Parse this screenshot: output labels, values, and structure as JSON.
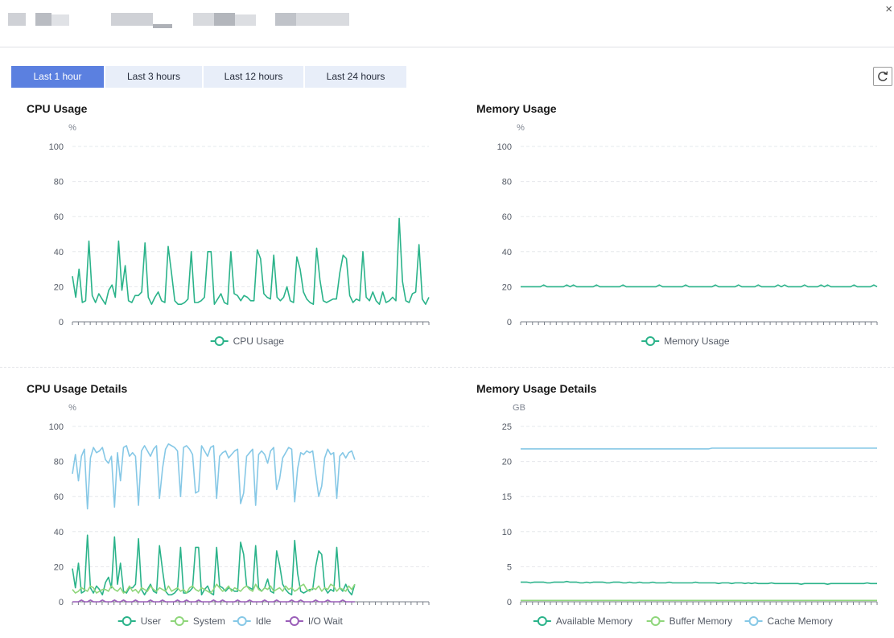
{
  "header": {
    "close_label": "×"
  },
  "tabs": [
    {
      "label": "Last 1 hour",
      "active": true
    },
    {
      "label": "Last 3 hours",
      "active": false
    },
    {
      "label": "Last 12 hours",
      "active": false
    },
    {
      "label": "Last 24 hours",
      "active": false
    }
  ],
  "toolbar": {
    "refresh_icon": "refresh-icon"
  },
  "colors": {
    "accent": "#5b80e0",
    "green": "#2bb38a",
    "lightgreen": "#8fd67b",
    "blue": "#86c8e6",
    "purple": "#9a5eb8"
  },
  "chart_data": [
    {
      "type": "line",
      "title": "CPU Usage",
      "ylabel": "%",
      "ylim": [
        0,
        100
      ],
      "yticks": [
        0,
        20,
        40,
        60,
        80,
        100
      ],
      "legend": [
        "CPU Usage"
      ],
      "series": [
        {
          "name": "CPU Usage",
          "color": "#2bb38a",
          "values": [
            26,
            14,
            30,
            11,
            12,
            46,
            15,
            11,
            16,
            13,
            10,
            18,
            21,
            14,
            46,
            18,
            32,
            12,
            11,
            15,
            15,
            17,
            45,
            14,
            10,
            14,
            17,
            12,
            11,
            43,
            28,
            12,
            10,
            10,
            11,
            13,
            40,
            11,
            11,
            12,
            14,
            40,
            40,
            10,
            13,
            16,
            11,
            10,
            40,
            16,
            15,
            12,
            15,
            14,
            12,
            12,
            41,
            36,
            16,
            14,
            13,
            38,
            14,
            12,
            14,
            20,
            12,
            11,
            37,
            30,
            17,
            13,
            11,
            10,
            42,
            24,
            12,
            11,
            12,
            13,
            13,
            28,
            38,
            36,
            15,
            11,
            13,
            12,
            40,
            14,
            12,
            17,
            12,
            10,
            17,
            11,
            12,
            14,
            12,
            59,
            23,
            12,
            11,
            16,
            17,
            44,
            13,
            10,
            14
          ]
        }
      ]
    },
    {
      "type": "line",
      "title": "Memory Usage",
      "ylabel": "%",
      "ylim": [
        0,
        100
      ],
      "yticks": [
        0,
        20,
        40,
        60,
        80,
        100
      ],
      "legend": [
        "Memory Usage"
      ],
      "series": [
        {
          "name": "Memory Usage",
          "color": "#2bb38a",
          "values": [
            20,
            20,
            20,
            20,
            20,
            20,
            20,
            21,
            20,
            20,
            20,
            20,
            20,
            20,
            21,
            20,
            21,
            20,
            20,
            20,
            20,
            20,
            20,
            21,
            20,
            20,
            20,
            20,
            20,
            20,
            20,
            21,
            20,
            20,
            20,
            20,
            20,
            20,
            20,
            20,
            20,
            20,
            21,
            20,
            20,
            20,
            20,
            20,
            20,
            20,
            21,
            20,
            20,
            20,
            20,
            20,
            20,
            20,
            20,
            21,
            20,
            20,
            20,
            20,
            20,
            20,
            21,
            20,
            20,
            20,
            20,
            20,
            21,
            20,
            20,
            20,
            20,
            20,
            21,
            20,
            21,
            20,
            20,
            20,
            20,
            20,
            21,
            20,
            20,
            20,
            20,
            21,
            20,
            21,
            20,
            20,
            20,
            20,
            20,
            20,
            20,
            21,
            20,
            20,
            20,
            20,
            20,
            21,
            20
          ]
        }
      ]
    },
    {
      "type": "line",
      "title": "CPU Usage Details",
      "ylabel": "%",
      "ylim": [
        0,
        100
      ],
      "yticks": [
        0,
        20,
        40,
        60,
        80,
        100
      ],
      "legend": [
        "User",
        "System",
        "Idle",
        "I/O Wait"
      ],
      "series": [
        {
          "name": "User",
          "color": "#2bb38a",
          "values": [
            19,
            8,
            22,
            5,
            6,
            38,
            8,
            5,
            9,
            7,
            4,
            11,
            14,
            8,
            37,
            10,
            22,
            6,
            5,
            8,
            8,
            10,
            36,
            7,
            4,
            7,
            10,
            6,
            5,
            32,
            18,
            6,
            4,
            4,
            5,
            7,
            31,
            5,
            5,
            6,
            8,
            31,
            31,
            4,
            7,
            9,
            5,
            4,
            31,
            9,
            8,
            6,
            8,
            7,
            6,
            6,
            34,
            27,
            9,
            8,
            7,
            32,
            8,
            6,
            8,
            13,
            6,
            5,
            29,
            21,
            10,
            7,
            5,
            4,
            35,
            16,
            6,
            5,
            6,
            7,
            7,
            20,
            29,
            27,
            8,
            5,
            7,
            6,
            31,
            8,
            6,
            10,
            6,
            4,
            10
          ]
        },
        {
          "name": "System",
          "color": "#8fd67b",
          "values": [
            7,
            5,
            6,
            8,
            7,
            6,
            9,
            8,
            5,
            6,
            7,
            7,
            6,
            9,
            7,
            6,
            8,
            5,
            6,
            9,
            6,
            7,
            5,
            8,
            7,
            6,
            9,
            7,
            6,
            8,
            7,
            6,
            9,
            6,
            7,
            8,
            6,
            7,
            5,
            8,
            9,
            7,
            6,
            8,
            7,
            6,
            5,
            7,
            10,
            8,
            6,
            7,
            9,
            6,
            8,
            7,
            6,
            8,
            9,
            7,
            6,
            10,
            7,
            6,
            8,
            7,
            9,
            6,
            7,
            8,
            6,
            9,
            7,
            8,
            6,
            7,
            9,
            10,
            7,
            6,
            8,
            7,
            9,
            6,
            8,
            7,
            10,
            9,
            6,
            8,
            7,
            6,
            9,
            7,
            10
          ]
        },
        {
          "name": "Idle",
          "color": "#86c8e6",
          "values": [
            73,
            84,
            69,
            83,
            87,
            53,
            82,
            88,
            85,
            86,
            88,
            81,
            79,
            83,
            54,
            85,
            69,
            88,
            89,
            83,
            85,
            83,
            55,
            86,
            89,
            86,
            83,
            87,
            89,
            59,
            76,
            87,
            90,
            89,
            88,
            86,
            60,
            88,
            89,
            87,
            84,
            62,
            63,
            89,
            86,
            83,
            88,
            89,
            59,
            83,
            85,
            86,
            82,
            84,
            86,
            87,
            56,
            62,
            83,
            85,
            87,
            55,
            84,
            86,
            84,
            79,
            86,
            88,
            64,
            70,
            82,
            85,
            88,
            87,
            57,
            76,
            85,
            84,
            86,
            85,
            86,
            73,
            60,
            66,
            82,
            87,
            84,
            85,
            59,
            83,
            85,
            82,
            85,
            86,
            81
          ]
        },
        {
          "name": "I/O Wait",
          "color": "#9a5eb8",
          "values": [
            0,
            0,
            0,
            1,
            0,
            0,
            1,
            0,
            0,
            0,
            1,
            0,
            0,
            0,
            1,
            0,
            0,
            1,
            0,
            0,
            0,
            1,
            0,
            0,
            0,
            0,
            1,
            0,
            0,
            0,
            1,
            0,
            0,
            0,
            0,
            1,
            0,
            0,
            1,
            0,
            0,
            0,
            1,
            0,
            0,
            0,
            0,
            1,
            0,
            0,
            1,
            0,
            0,
            0,
            0,
            1,
            0,
            0,
            0,
            1,
            0,
            0,
            0,
            0,
            1,
            0,
            0,
            0,
            1,
            0,
            0,
            0,
            0,
            1,
            0,
            0,
            1,
            0,
            0,
            0,
            0,
            1,
            0,
            0,
            0,
            1,
            0,
            0,
            0,
            0,
            1,
            0,
            0,
            0,
            0
          ]
        }
      ]
    },
    {
      "type": "line",
      "title": "Memory Usage Details",
      "ylabel": "GB",
      "ylim": [
        0,
        25
      ],
      "yticks": [
        0,
        5,
        10,
        15,
        20,
        25
      ],
      "legend": [
        "Available Memory",
        "Buffer Memory",
        "Cache Memory"
      ],
      "series": [
        {
          "name": "Available Memory",
          "color": "#2bb38a",
          "values": [
            2.8,
            2.8,
            2.8,
            2.7,
            2.8,
            2.8,
            2.8,
            2.8,
            2.7,
            2.7,
            2.8,
            2.8,
            2.8,
            2.8,
            2.9,
            2.8,
            2.8,
            2.8,
            2.7,
            2.7,
            2.8,
            2.7,
            2.8,
            2.8,
            2.8,
            2.8,
            2.7,
            2.7,
            2.8,
            2.8,
            2.8,
            2.7,
            2.7,
            2.8,
            2.7,
            2.7,
            2.8,
            2.7,
            2.7,
            2.7,
            2.8,
            2.7,
            2.7,
            2.7,
            2.7,
            2.8,
            2.7,
            2.7,
            2.7,
            2.7,
            2.7,
            2.7,
            2.7,
            2.8,
            2.7,
            2.7,
            2.7,
            2.7,
            2.7,
            2.7,
            2.6,
            2.7,
            2.7,
            2.7,
            2.6,
            2.7,
            2.7,
            2.7,
            2.6,
            2.7,
            2.6,
            2.7,
            2.6,
            2.6,
            2.6,
            2.6,
            2.7,
            2.6,
            2.6,
            2.6,
            2.6,
            2.6,
            2.6,
            2.6,
            2.6,
            2.5,
            2.6,
            2.6,
            2.6,
            2.6,
            2.6,
            2.6,
            2.6,
            2.5,
            2.6,
            2.6,
            2.6,
            2.6,
            2.6,
            2.6,
            2.6,
            2.6,
            2.6,
            2.6,
            2.6,
            2.7,
            2.6,
            2.6,
            2.6
          ]
        },
        {
          "name": "Buffer Memory",
          "color": "#8fd67b",
          "values": [
            0.2,
            0.2,
            0.2,
            0.2,
            0.2,
            0.2,
            0.2,
            0.2,
            0.2,
            0.2,
            0.2,
            0.2,
            0.2,
            0.2,
            0.2,
            0.2,
            0.2,
            0.2,
            0.2,
            0.2,
            0.2,
            0.2,
            0.2,
            0.2,
            0.2,
            0.2,
            0.2,
            0.2,
            0.2,
            0.2,
            0.2,
            0.2,
            0.2,
            0.2,
            0.2,
            0.2,
            0.2,
            0.2,
            0.2,
            0.2,
            0.2,
            0.2,
            0.2,
            0.2,
            0.2,
            0.2,
            0.2,
            0.2,
            0.2,
            0.2,
            0.2,
            0.2,
            0.2,
            0.2,
            0.2,
            0.2,
            0.2,
            0.2,
            0.2,
            0.2,
            0.2,
            0.2,
            0.2,
            0.2,
            0.2,
            0.2,
            0.2,
            0.2,
            0.2,
            0.2,
            0.2,
            0.2,
            0.2,
            0.2,
            0.2,
            0.2,
            0.2,
            0.2,
            0.2,
            0.2,
            0.2,
            0.2,
            0.2,
            0.2,
            0.2,
            0.2,
            0.2,
            0.2,
            0.2,
            0.2,
            0.2,
            0.2,
            0.2,
            0.2,
            0.2,
            0.2,
            0.2,
            0.2,
            0.2,
            0.2,
            0.2,
            0.2,
            0.2,
            0.2,
            0.2,
            0.2,
            0.2,
            0.2,
            0.2
          ]
        },
        {
          "name": "Cache Memory",
          "color": "#86c8e6",
          "values": [
            21.8,
            21.8,
            21.8,
            21.8,
            21.8,
            21.8,
            21.8,
            21.8,
            21.8,
            21.8,
            21.8,
            21.8,
            21.8,
            21.8,
            21.8,
            21.8,
            21.8,
            21.8,
            21.8,
            21.8,
            21.8,
            21.8,
            21.8,
            21.8,
            21.8,
            21.8,
            21.8,
            21.8,
            21.8,
            21.8,
            21.8,
            21.8,
            21.8,
            21.8,
            21.8,
            21.8,
            21.8,
            21.8,
            21.8,
            21.8,
            21.8,
            21.8,
            21.8,
            21.8,
            21.8,
            21.8,
            21.8,
            21.8,
            21.8,
            21.8,
            21.8,
            21.8,
            21.8,
            21.8,
            21.8,
            21.8,
            21.8,
            21.8,
            21.9,
            21.9,
            21.9,
            21.9,
            21.9,
            21.9,
            21.9,
            21.9,
            21.9,
            21.9,
            21.9,
            21.9,
            21.9,
            21.9,
            21.9,
            21.9,
            21.9,
            21.9,
            21.9,
            21.9,
            21.9,
            21.9,
            21.9,
            21.9,
            21.9,
            21.9,
            21.9,
            21.9,
            21.9,
            21.9,
            21.9,
            21.9,
            21.9,
            21.9,
            21.9,
            21.9,
            21.9,
            21.9,
            21.9,
            21.9,
            21.9,
            21.9,
            21.9,
            21.9,
            21.9,
            21.9,
            21.9,
            21.9,
            21.9,
            21.9,
            21.9
          ]
        }
      ]
    }
  ]
}
